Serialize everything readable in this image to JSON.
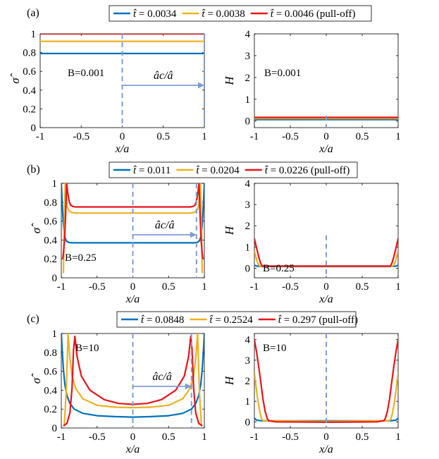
{
  "colors": {
    "blue": "#0072bd",
    "orange": "#edb120",
    "red": "#e8141b",
    "dash": "#7f9cd6"
  },
  "chart_data": [
    {
      "type": "line",
      "panel": "(a)",
      "legend": [
        "t̂ = 0.0034",
        "t̂ = 0.0038",
        "t̂ = 0.0046 (pull-off)"
      ],
      "left": {
        "ylabel": "σ̂",
        "xlabel": "x/a",
        "xlim": [
          -1,
          1
        ],
        "ylim": [
          0,
          1
        ],
        "xticks": [
          "-1",
          "-0.5",
          "0",
          "0.5",
          "1"
        ],
        "yticks": [
          "0",
          "0.2",
          "0.4",
          "0.6",
          "0.8",
          "1"
        ],
        "label": "B=0.001",
        "arrow_label": "âc/â",
        "contact_edge": 1.0,
        "series": [
          {
            "name": "t̂ = 0.0034",
            "x": [
              -1,
              1
            ],
            "y": [
              0.79,
              0.79
            ]
          },
          {
            "name": "t̂ = 0.0038",
            "x": [
              -1,
              1
            ],
            "y": [
              0.92,
              0.92
            ]
          },
          {
            "name": "t̂ = 0.0046 (pull-off)",
            "x": [
              -1,
              1
            ],
            "y": [
              1.0,
              1.0
            ]
          }
        ]
      },
      "right": {
        "ylabel": "H",
        "xlabel": "x/a",
        "xlim": [
          -1,
          1
        ],
        "ylim": [
          -0.3,
          4
        ],
        "xticks": [
          "-1",
          "-0.5",
          "0",
          "0.5",
          "1"
        ],
        "yticks": [
          "0",
          "1",
          "2",
          "3",
          "4"
        ],
        "label": "B=0.001",
        "series": [
          {
            "name": "t̂ = 0.0034",
            "x": [
              -1,
              1
            ],
            "y": [
              0.07,
              0.07
            ]
          },
          {
            "name": "t̂ = 0.0038",
            "x": [
              -1,
              1
            ],
            "y": [
              0.12,
              0.12
            ]
          },
          {
            "name": "t̂ = 0.0046 (pull-off)",
            "x": [
              -1,
              1
            ],
            "y": [
              0.17,
              0.17
            ]
          }
        ]
      }
    },
    {
      "type": "line",
      "panel": "(b)",
      "legend": [
        "t̂ = 0.011",
        "t̂ = 0.0204",
        "t̂ = 0.0226 (pull-off)"
      ],
      "left": {
        "ylabel": "σ̂",
        "xlabel": "x/a",
        "xlim": [
          -1,
          1
        ],
        "ylim": [
          0,
          1
        ],
        "xticks": [
          "-1",
          "-0.5",
          "0",
          "0.5",
          "1"
        ],
        "yticks": [
          "0",
          "0.2",
          "0.4",
          "0.6",
          "0.8",
          "1"
        ],
        "label": "B=0.25",
        "arrow_label": "âc/â",
        "contact_edge": 0.89,
        "series": [
          {
            "name": "t̂ = 0.011",
            "x": [
              -1,
              -0.99,
              -0.98,
              -0.97,
              -0.96,
              -0.95,
              -0.93,
              -0.9,
              -0.85,
              -0.8,
              -0.6,
              -0.3,
              0,
              0.3,
              0.6,
              0.8,
              0.85,
              0.9,
              0.93,
              0.95,
              0.96,
              0.97,
              0.98,
              0.99,
              1
            ],
            "y": [
              1,
              0.84,
              0.68,
              0.56,
              0.48,
              0.43,
              0.39,
              0.375,
              0.37,
              0.37,
              0.37,
              0.37,
              0.37,
              0.37,
              0.37,
              0.37,
              0.37,
              0.375,
              0.39,
              0.43,
              0.48,
              0.56,
              0.68,
              0.84,
              1
            ]
          },
          {
            "name": "t̂ = 0.0204",
            "x": [
              -0.97,
              -0.96,
              -0.945,
              -0.93,
              -0.92,
              -0.9,
              -0.88,
              -0.85,
              -0.8,
              -0.6,
              -0.3,
              0,
              0.3,
              0.6,
              0.8,
              0.85,
              0.88,
              0.9,
              0.92,
              0.93,
              0.945,
              0.96,
              0.97
            ],
            "y": [
              0.05,
              0.55,
              1.0,
              0.84,
              0.76,
              0.72,
              0.7,
              0.69,
              0.685,
              0.685,
              0.685,
              0.685,
              0.685,
              0.685,
              0.685,
              0.69,
              0.7,
              0.72,
              0.76,
              0.84,
              1.0,
              0.55,
              0.05
            ]
          },
          {
            "name": "t̂ = 0.0226 (pull-off)",
            "x": [
              -0.98,
              -0.97,
              -0.955,
              -0.94,
              -0.925,
              -0.91,
              -0.89,
              -0.87,
              -0.84,
              -0.8,
              -0.6,
              -0.3,
              0,
              0.3,
              0.6,
              0.8,
              0.84,
              0.87,
              0.89,
              0.91,
              0.925,
              0.94,
              0.955,
              0.97,
              0.98
            ],
            "y": [
              0.2,
              0.26,
              0.4,
              0.66,
              1.0,
              0.9,
              0.81,
              0.77,
              0.755,
              0.75,
              0.75,
              0.75,
              0.75,
              0.75,
              0.75,
              0.75,
              0.755,
              0.77,
              0.81,
              0.9,
              1.0,
              0.66,
              0.4,
              0.26,
              0.2
            ]
          }
        ]
      },
      "right": {
        "ylabel": "H",
        "xlabel": "x/a",
        "xlim": [
          -1,
          1
        ],
        "ylim": [
          -0.45,
          4
        ],
        "xticks": [
          "-1",
          "-0.5",
          "0",
          "0.5",
          "1"
        ],
        "yticks": [
          "0",
          "1",
          "2",
          "3",
          "4"
        ],
        "label": "B=0.25",
        "series": [
          {
            "name": "t̂ = 0.011",
            "x": [
              -1,
              -0.97,
              -0.9,
              0,
              0.9,
              0.97,
              1
            ],
            "y": [
              0.14,
              0.1,
              0.08,
              0.08,
              0.08,
              0.1,
              0.14
            ]
          },
          {
            "name": "t̂ = 0.0204",
            "x": [
              -1,
              -0.98,
              -0.96,
              -0.94,
              -0.92,
              0,
              0.92,
              0.94,
              0.96,
              0.98,
              1
            ],
            "y": [
              0.85,
              0.55,
              0.3,
              0.15,
              0.09,
              0.09,
              0.09,
              0.15,
              0.3,
              0.55,
              0.85
            ]
          },
          {
            "name": "t̂ = 0.0226 (pull-off)",
            "x": [
              -1,
              -0.98,
              -0.96,
              -0.94,
              -0.92,
              -0.9,
              -0.89,
              0,
              0.89,
              0.9,
              0.92,
              0.94,
              0.96,
              0.98,
              1
            ],
            "y": [
              1.4,
              1.1,
              0.82,
              0.55,
              0.3,
              0.14,
              0.1,
              0.1,
              0.1,
              0.14,
              0.3,
              0.55,
              0.82,
              1.1,
              1.4
            ]
          }
        ]
      }
    },
    {
      "type": "line",
      "panel": "(c)",
      "legend": [
        "t̂ = 0.0848",
        "t̂ = 0.2524",
        "t̂ = 0.297 (pull-off)"
      ],
      "left": {
        "ylabel": "σ̂",
        "xlabel": "x/a",
        "xlim": [
          -1,
          1
        ],
        "ylim": [
          0,
          1
        ],
        "xticks": [
          "-1",
          "-0.5",
          "0",
          "0.5",
          "1"
        ],
        "yticks": [
          "0",
          "0.2",
          "0.4",
          "0.6",
          "0.8",
          "1"
        ],
        "label": "B=10",
        "arrow_label": "âc/â",
        "contact_edge": 0.82,
        "series": [
          {
            "name": "t̂ = 0.0848",
            "x": [
              -1,
              -0.99,
              -0.97,
              -0.95,
              -0.92,
              -0.88,
              -0.82,
              -0.7,
              -0.5,
              -0.25,
              0,
              0.25,
              0.5,
              0.7,
              0.82,
              0.88,
              0.92,
              0.95,
              0.97,
              0.99,
              1
            ],
            "y": [
              1,
              0.86,
              0.62,
              0.46,
              0.34,
              0.26,
              0.2,
              0.155,
              0.13,
              0.12,
              0.115,
              0.12,
              0.13,
              0.155,
              0.2,
              0.26,
              0.34,
              0.46,
              0.62,
              0.86,
              1
            ]
          },
          {
            "name": "t̂ = 0.2524",
            "x": [
              -0.96,
              -0.93,
              -0.905,
              -0.88,
              -0.85,
              -0.8,
              -0.7,
              -0.5,
              -0.25,
              0,
              0.25,
              0.5,
              0.7,
              0.8,
              0.85,
              0.88,
              0.905,
              0.93,
              0.96
            ],
            "y": [
              0.02,
              0.4,
              1.0,
              0.74,
              0.55,
              0.42,
              0.31,
              0.24,
              0.22,
              0.215,
              0.22,
              0.24,
              0.31,
              0.42,
              0.55,
              0.74,
              1.0,
              0.4,
              0.02
            ]
          },
          {
            "name": "t̂ = 0.297 (pull-off)",
            "x": [
              -0.97,
              -0.92,
              -0.88,
              -0.85,
              -0.83,
              -0.81,
              -0.78,
              -0.72,
              -0.6,
              -0.4,
              -0.2,
              0,
              0.2,
              0.4,
              0.6,
              0.72,
              0.78,
              0.81,
              0.83,
              0.85,
              0.88,
              0.92,
              0.97
            ],
            "y": [
              0.02,
              0.05,
              0.16,
              0.42,
              0.82,
              0.97,
              0.76,
              0.55,
              0.4,
              0.3,
              0.26,
              0.25,
              0.26,
              0.3,
              0.4,
              0.55,
              0.76,
              0.97,
              0.82,
              0.42,
              0.16,
              0.05,
              0.02
            ]
          }
        ]
      },
      "right": {
        "ylabel": "H",
        "xlabel": "x/a",
        "xlim": [
          -1,
          1
        ],
        "ylim": [
          -0.3,
          4.3
        ],
        "xticks": [
          "-1",
          "-0.5",
          "0",
          "0.5",
          "1"
        ],
        "yticks": [
          "0",
          "1",
          "2",
          "3",
          "4"
        ],
        "label": "B=10",
        "series": [
          {
            "name": "t̂ = 0.0848",
            "x": [
              -1,
              -0.97,
              -0.9,
              0,
              0.9,
              0.97,
              1
            ],
            "y": [
              0.18,
              0.08,
              0.05,
              0.05,
              0.05,
              0.08,
              0.18
            ]
          },
          {
            "name": "t̂ = 0.2524",
            "x": [
              -1,
              -0.98,
              -0.95,
              -0.92,
              -0.9,
              -0.88,
              0,
              0.88,
              0.9,
              0.92,
              0.95,
              0.98,
              1
            ],
            "y": [
              2.4,
              1.8,
              1.0,
              0.4,
              0.15,
              0.06,
              0.02,
              0.06,
              0.15,
              0.4,
              1.0,
              1.8,
              2.4
            ]
          },
          {
            "name": "t̂ = 0.297 (pull-off)",
            "x": [
              -1,
              -0.97,
              -0.94,
              -0.91,
              -0.88,
              -0.85,
              -0.82,
              -0.8,
              -0.7,
              0,
              0.7,
              0.8,
              0.82,
              0.85,
              0.88,
              0.91,
              0.94,
              0.97,
              1
            ],
            "y": [
              4.0,
              3.4,
              2.7,
              1.9,
              1.1,
              0.5,
              0.15,
              0.05,
              0.0,
              -0.02,
              0.0,
              0.05,
              0.15,
              0.5,
              1.1,
              1.9,
              2.7,
              3.4,
              4.0
            ]
          }
        ]
      }
    }
  ]
}
